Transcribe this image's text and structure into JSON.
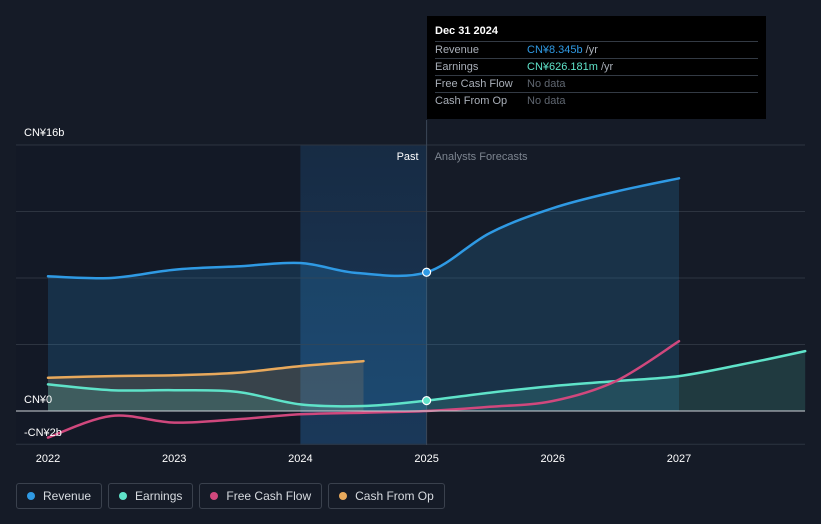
{
  "colors": {
    "background": "#151b27",
    "revenue": "#2f9ae4",
    "earnings": "#5fe3c9",
    "free_cash_flow": "#d0487d",
    "cash_from_op": "#e8a95c",
    "grid": "#2d3440",
    "zero_line": "#cfd3d8",
    "past_highlight": "#1a3a5c"
  },
  "tooltip": {
    "date": "Dec 31 2024",
    "rows": [
      {
        "label": "Revenue",
        "value": "CN¥8.345b",
        "unit": "/yr",
        "color": "#2f9ae4"
      },
      {
        "label": "Earnings",
        "value": "CN¥626.181m",
        "unit": "/yr",
        "color": "#5fe3c9"
      },
      {
        "label": "Free Cash Flow",
        "value": "No data",
        "unit": "",
        "color": "#5f6670"
      },
      {
        "label": "Cash From Op",
        "value": "No data",
        "unit": "",
        "color": "#5f6670"
      }
    ]
  },
  "legend": [
    {
      "label": "Revenue",
      "color": "#2f9ae4"
    },
    {
      "label": "Earnings",
      "color": "#5fe3c9"
    },
    {
      "label": "Free Cash Flow",
      "color": "#d0487d"
    },
    {
      "label": "Cash From Op",
      "color": "#e8a95c"
    }
  ],
  "chart_data": {
    "type": "line",
    "title": "",
    "xlabel": "",
    "ylabel": "",
    "unit": "CN¥ billions",
    "xlim": [
      2021.8,
      2028.0
    ],
    "ylim": [
      -2,
      16
    ],
    "x_ticks": [
      2022,
      2023,
      2024,
      2025,
      2026,
      2027
    ],
    "x_tick_labels": [
      "2022",
      "2023",
      "2024",
      "2025",
      "2026",
      "2027"
    ],
    "y_tick_labels": [
      {
        "value": 16,
        "label": "CN¥16b"
      },
      {
        "value": 0,
        "label": "CN¥0"
      },
      {
        "value": -2,
        "label": "-CN¥2b"
      }
    ],
    "divider_x": 2025.0,
    "past_label": "Past",
    "forecast_label": "Analysts Forecasts",
    "past_highlight_range": [
      2024.0,
      2025.0
    ],
    "tooltip_x": 2025.0,
    "series": [
      {
        "name": "Revenue",
        "key": "revenue",
        "area": true,
        "points": [
          [
            2022.0,
            8.1
          ],
          [
            2022.5,
            8.0
          ],
          [
            2023.0,
            8.5
          ],
          [
            2023.5,
            8.7
          ],
          [
            2024.0,
            8.9
          ],
          [
            2024.45,
            8.3
          ],
          [
            2025.0,
            8.345
          ],
          [
            2025.5,
            10.7
          ],
          [
            2026.0,
            12.2
          ],
          [
            2026.5,
            13.2
          ],
          [
            2027.0,
            14.0
          ]
        ]
      },
      {
        "name": "Earnings",
        "key": "earnings",
        "area": true,
        "points": [
          [
            2022.0,
            1.6
          ],
          [
            2022.5,
            1.25
          ],
          [
            2023.0,
            1.25
          ],
          [
            2023.5,
            1.15
          ],
          [
            2024.0,
            0.4
          ],
          [
            2024.5,
            0.3
          ],
          [
            2025.0,
            0.626
          ],
          [
            2025.5,
            1.1
          ],
          [
            2026.0,
            1.5
          ],
          [
            2026.5,
            1.8
          ],
          [
            2027.0,
            2.1
          ],
          [
            2027.5,
            2.8
          ],
          [
            2028.0,
            3.6
          ]
        ]
      },
      {
        "name": "Free Cash Flow",
        "key": "free_cash_flow",
        "area": false,
        "points": [
          [
            2022.0,
            -1.6
          ],
          [
            2022.5,
            -0.3
          ],
          [
            2023.0,
            -0.7
          ],
          [
            2023.5,
            -0.5
          ],
          [
            2024.0,
            -0.2
          ],
          [
            2024.5,
            -0.1
          ],
          [
            2025.0,
            0.0
          ],
          [
            2025.5,
            0.25
          ],
          [
            2026.0,
            0.6
          ],
          [
            2026.5,
            1.8
          ],
          [
            2027.0,
            4.2
          ]
        ]
      },
      {
        "name": "Cash From Op",
        "key": "cash_from_op",
        "area": true,
        "points": [
          [
            2022.0,
            2.0
          ],
          [
            2022.5,
            2.1
          ],
          [
            2023.0,
            2.15
          ],
          [
            2023.5,
            2.3
          ],
          [
            2024.0,
            2.7
          ],
          [
            2024.5,
            3.0
          ]
        ]
      }
    ]
  }
}
